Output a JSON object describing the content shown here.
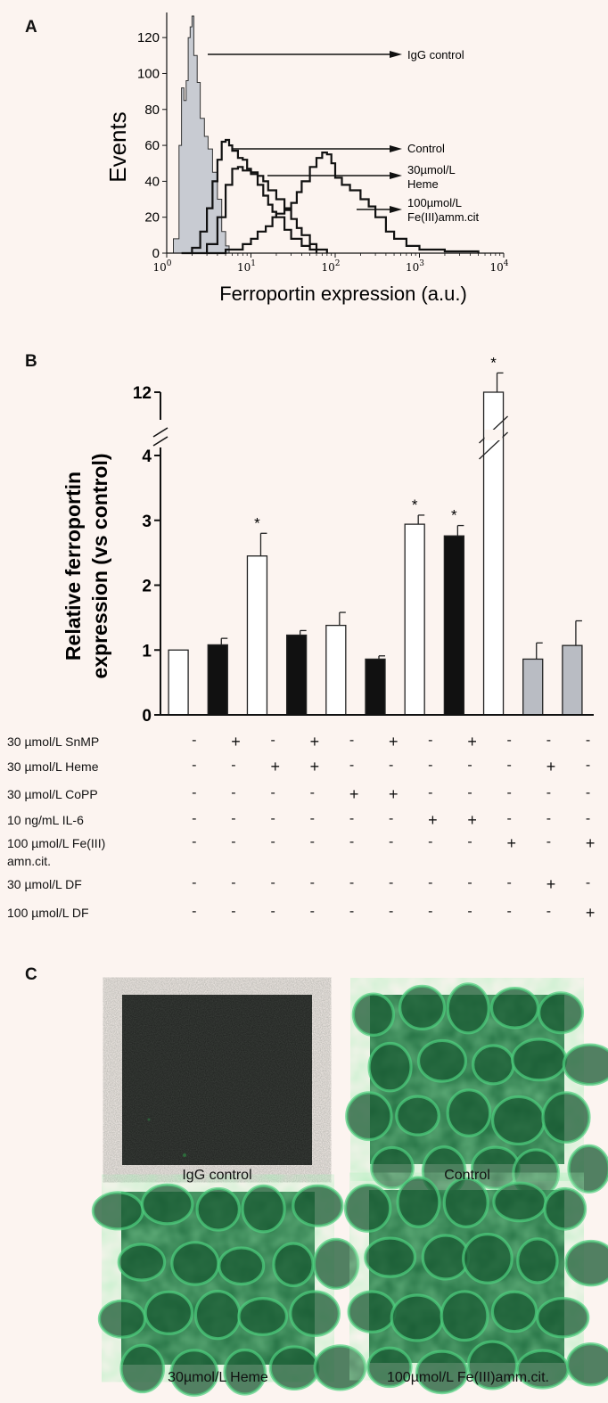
{
  "panels": {
    "a": "A",
    "b": "B",
    "c": "C"
  },
  "chart_data": [
    {
      "type": "line",
      "panel": "A",
      "xlabel": "Ferroportin expression (a.u.)",
      "ylabel": "Events",
      "xscale": "log",
      "xlim": [
        1,
        10000
      ],
      "ylim": [
        0,
        130
      ],
      "xticks": [
        {
          "base": "10",
          "exp": "0",
          "value": 1
        },
        {
          "base": "10",
          "exp": "1",
          "value": 10
        },
        {
          "base": "10",
          "exp": "2",
          "value": 100
        },
        {
          "base": "10",
          "exp": "3",
          "value": 1000
        },
        {
          "base": "10",
          "exp": "4",
          "value": 10000
        }
      ],
      "yticks": [
        {
          "label": "0",
          "value": 0
        },
        {
          "label": "20",
          "value": 20
        },
        {
          "label": "40",
          "value": 40
        },
        {
          "label": "60",
          "value": 60
        },
        {
          "label": "80",
          "value": 80
        },
        {
          "label": "100",
          "value": 100
        },
        {
          "label": "120",
          "value": 120
        }
      ],
      "series": [
        {
          "name": "IgG control",
          "fill": "#c8cbd2",
          "points": [
            [
              1,
              0
            ],
            [
              1.2,
              8
            ],
            [
              1.4,
              60
            ],
            [
              1.5,
              92
            ],
            [
              1.6,
              85
            ],
            [
              1.7,
              96
            ],
            [
              1.8,
              120
            ],
            [
              1.9,
              126
            ],
            [
              2.0,
              132
            ],
            [
              2.1,
              110
            ],
            [
              2.3,
              95
            ],
            [
              2.5,
              75
            ],
            [
              2.8,
              65
            ],
            [
              3.1,
              58
            ],
            [
              3.5,
              45
            ],
            [
              4.0,
              30
            ],
            [
              4.5,
              12
            ],
            [
              5.0,
              4
            ],
            [
              5.5,
              0
            ]
          ]
        },
        {
          "name": "Control",
          "points": [
            [
              1.5,
              0
            ],
            [
              2,
              3
            ],
            [
              2.5,
              12
            ],
            [
              3,
              25
            ],
            [
              3.5,
              40
            ],
            [
              4,
              52
            ],
            [
              4.5,
              62
            ],
            [
              5,
              63
            ],
            [
              5.5,
              60
            ],
            [
              6,
              57
            ],
            [
              7,
              53
            ],
            [
              8,
              52
            ],
            [
              9,
              47
            ],
            [
              10,
              44
            ],
            [
              12,
              38
            ],
            [
              14,
              32
            ],
            [
              16,
              27
            ],
            [
              18,
              23
            ],
            [
              20,
              20
            ],
            [
              25,
              13
            ],
            [
              30,
              8
            ],
            [
              40,
              4
            ],
            [
              50,
              2
            ],
            [
              60,
              0
            ]
          ]
        },
        {
          "name": "30µmol/L Heme",
          "points": [
            [
              2,
              0
            ],
            [
              3,
              5
            ],
            [
              4,
              20
            ],
            [
              5,
              38
            ],
            [
              6,
              47
            ],
            [
              7,
              48
            ],
            [
              8,
              46
            ],
            [
              10,
              45
            ],
            [
              12,
              43
            ],
            [
              14,
              40
            ],
            [
              16,
              35
            ],
            [
              20,
              30
            ],
            [
              25,
              24
            ],
            [
              30,
              19
            ],
            [
              35,
              14
            ],
            [
              40,
              10
            ],
            [
              50,
              5
            ],
            [
              60,
              2
            ],
            [
              80,
              0
            ]
          ]
        },
        {
          "name": "100µmol/L Fe(III)amm.cit",
          "points": [
            [
              3,
              0
            ],
            [
              5,
              2
            ],
            [
              8,
              5
            ],
            [
              10,
              8
            ],
            [
              12,
              12
            ],
            [
              15,
              15
            ],
            [
              18,
              20
            ],
            [
              20,
              22
            ],
            [
              25,
              25
            ],
            [
              30,
              28
            ],
            [
              35,
              34
            ],
            [
              40,
              40
            ],
            [
              50,
              48
            ],
            [
              60,
              53
            ],
            [
              70,
              56
            ],
            [
              80,
              55
            ],
            [
              90,
              50
            ],
            [
              100,
              42
            ],
            [
              120,
              38
            ],
            [
              150,
              35
            ],
            [
              200,
              30
            ],
            [
              250,
              26
            ],
            [
              300,
              20
            ],
            [
              400,
              12
            ],
            [
              500,
              8
            ],
            [
              700,
              4
            ],
            [
              1000,
              2
            ],
            [
              2000,
              1
            ],
            [
              5000,
              0
            ]
          ]
        }
      ],
      "annotations": [
        {
          "text": "IgG control",
          "lines": [
            "IgG control"
          ]
        },
        {
          "text": "Control",
          "lines": [
            "Control"
          ]
        },
        {
          "text": "30µmol/L Heme",
          "lines": [
            "30µmol/L",
            "Heme"
          ]
        },
        {
          "text": "100µmol/L Fe(III)amm.cit",
          "lines": [
            "100µmol/L",
            "Fe(III)amm.cit"
          ]
        }
      ]
    },
    {
      "type": "bar",
      "panel": "B",
      "ylabel_lines": [
        "Relative ferroportin",
        "expression (vs control)"
      ],
      "ylim": [
        0,
        12
      ],
      "axis_break": [
        4.3,
        11.8
      ],
      "yticks": [
        {
          "label": "0",
          "value": 0
        },
        {
          "label": "1",
          "value": 1
        },
        {
          "label": "2",
          "value": 2
        },
        {
          "label": "3",
          "value": 3
        },
        {
          "label": "4",
          "value": 4
        },
        {
          "label": "12",
          "value": 12
        }
      ],
      "colors": {
        "white": "#ffffff",
        "black": "#111111",
        "gray": "#b9bcc3"
      },
      "bars": [
        {
          "value": 1.0,
          "error": 0,
          "color": "white",
          "sig": ""
        },
        {
          "value": 1.08,
          "error": 0.1,
          "color": "black",
          "sig": ""
        },
        {
          "value": 2.45,
          "error": 0.35,
          "color": "white",
          "sig": "*"
        },
        {
          "value": 1.23,
          "error": 0.07,
          "color": "black",
          "sig": ""
        },
        {
          "value": 1.38,
          "error": 0.2,
          "color": "white",
          "sig": ""
        },
        {
          "value": 0.86,
          "error": 0.05,
          "color": "black",
          "sig": ""
        },
        {
          "value": 2.94,
          "error": 0.14,
          "color": "white",
          "sig": "*"
        },
        {
          "value": 2.76,
          "error": 0.16,
          "color": "black",
          "sig": "*"
        },
        {
          "value": 12.0,
          "error": 1.8,
          "color": "white",
          "sig": "*"
        },
        {
          "value": 0.86,
          "error": 0.25,
          "color": "gray",
          "sig": ""
        },
        {
          "value": 1.07,
          "error": 0.38,
          "color": "gray",
          "sig": ""
        }
      ],
      "treatments": [
        {
          "label": "30 µmol/L SnMP",
          "signs": [
            "-",
            "+",
            "-",
            "+",
            "-",
            "+",
            "-",
            "+",
            "-",
            "-",
            "-"
          ]
        },
        {
          "label": "30 µmol/L Heme",
          "signs": [
            "-",
            "-",
            "+",
            "+",
            "-",
            "-",
            "-",
            "-",
            "-",
            "+",
            "-"
          ]
        },
        {
          "label": "30 µmol/L CoPP",
          "signs": [
            "-",
            "-",
            "-",
            "-",
            "+",
            "+",
            "-",
            "-",
            "-",
            "-",
            "-"
          ]
        },
        {
          "label": "10 ng/mL IL-6",
          "signs": [
            "-",
            "-",
            "-",
            "-",
            "-",
            "-",
            "+",
            "+",
            "-",
            "-",
            "-"
          ]
        },
        {
          "label": "100 µmol/L Fe(III)",
          "label2": "amn.cit.",
          "signs": [
            "-",
            "-",
            "-",
            "-",
            "-",
            "-",
            "-",
            "-",
            "+",
            "-",
            "+"
          ]
        },
        {
          "label": "30 µmol/L DF",
          "signs": [
            "-",
            "-",
            "-",
            "-",
            "-",
            "-",
            "-",
            "-",
            "-",
            "+",
            "-"
          ]
        },
        {
          "label": "100 µmol/L DF",
          "signs": [
            "-",
            "-",
            "-",
            "-",
            "-",
            "-",
            "-",
            "-",
            "-",
            "-",
            "+"
          ]
        }
      ]
    }
  ],
  "micrographs": [
    {
      "caption": "IgG control",
      "tone": "dark"
    },
    {
      "caption": "Control",
      "tone": "green"
    },
    {
      "caption": "30µmol/L Heme",
      "tone": "green"
    },
    {
      "caption": "100µmol/L Fe(III)amm.cit.",
      "tone": "green"
    }
  ]
}
